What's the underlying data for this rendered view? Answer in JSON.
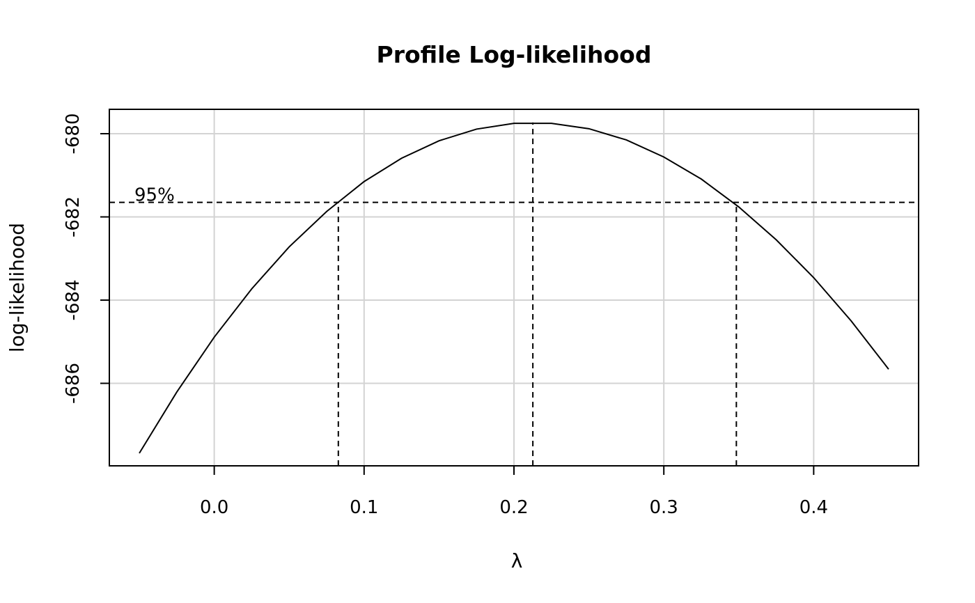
{
  "chart_data": {
    "type": "line",
    "title": "Profile Log-likelihood",
    "xlabel": "λ",
    "ylabel": "log-likelihood",
    "x": [
      -0.05,
      -0.025,
      0,
      0.025,
      0.05,
      0.075,
      0.1,
      0.125,
      0.15,
      0.175,
      0.2,
      0.225,
      0.25,
      0.275,
      0.3,
      0.325,
      0.35,
      0.375,
      0.4,
      0.425,
      0.45
    ],
    "values": [
      -687.68,
      -686.21,
      -684.89,
      -683.73,
      -682.72,
      -681.87,
      -681.15,
      -680.59,
      -680.17,
      -679.89,
      -679.75,
      -679.75,
      -679.88,
      -680.15,
      -680.56,
      -681.09,
      -681.76,
      -682.55,
      -683.46,
      -684.5,
      -685.66
    ],
    "color": "#000000",
    "ci_line": {
      "value": -681.65,
      "label": "95%"
    },
    "vlines": [
      {
        "x": 0.0828,
        "y": -681.65
      },
      {
        "x": 0.2126,
        "y": -679.73
      },
      {
        "x": 0.3484,
        "y": -681.65
      }
    ],
    "xlim": [
      -0.07,
      0.47
    ],
    "xticks": [
      {
        "value": 0,
        "label": "0.0"
      },
      0.1,
      0.2,
      0.3,
      0.4
    ],
    "ylim": [
      -687.983,
      -679.414
    ],
    "yticks": [
      -680,
      -682,
      -684,
      -686
    ],
    "grid": true
  }
}
